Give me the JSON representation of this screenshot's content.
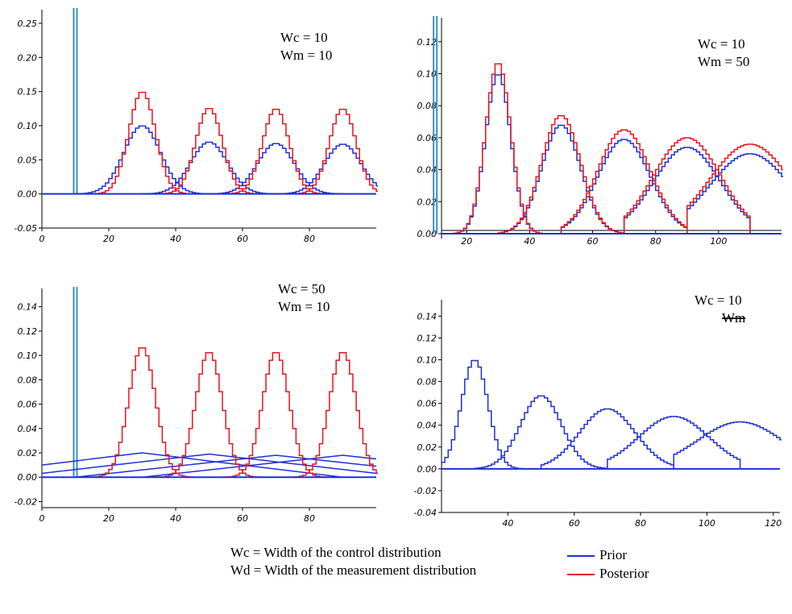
{
  "colors": {
    "prior": "#1f2fd6",
    "posterior": "#e8141c",
    "marker": "#3a8fc0",
    "axis": "#000000"
  },
  "chart_data": [
    {
      "type": "line",
      "panel": "top-left",
      "xlim": [
        0,
        100
      ],
      "ylim": [
        -0.05,
        0.27
      ],
      "xticks": [
        0,
        20,
        40,
        60,
        80
      ],
      "xtick_labels": [
        "0",
        "20",
        "40",
        "60",
        "80"
      ],
      "yticks": [
        -0.05,
        0,
        0.05,
        0.1,
        0.15,
        0.2,
        0.25
      ],
      "ytick_labels": [
        "-0.05",
        "0.00",
        "0.05",
        "0.10",
        "0.15",
        "0.20",
        "0.25"
      ],
      "annotation": [
        "Wc   = 10",
        "Wm  = 10"
      ],
      "marker_x": 10,
      "series": [
        {
          "role": "prior",
          "peaks": [
            {
              "x": 30,
              "y": 0.1
            },
            {
              "x": 50,
              "y": 0.076
            },
            {
              "x": 70,
              "y": 0.074
            },
            {
              "x": 90,
              "y": 0.073
            }
          ]
        },
        {
          "role": "posterior",
          "peaks": [
            {
              "x": 30,
              "y": 0.15
            },
            {
              "x": 50,
              "y": 0.126
            },
            {
              "x": 70,
              "y": 0.125
            },
            {
              "x": 90,
              "y": 0.125
            }
          ]
        }
      ]
    },
    {
      "type": "line",
      "panel": "top-right",
      "xlim": [
        12,
        120
      ],
      "ylim": [
        -0.003,
        0.135
      ],
      "xticks": [
        20,
        40,
        60,
        80,
        100
      ],
      "xtick_labels": [
        "20",
        "40",
        "60",
        "80",
        "100"
      ],
      "yticks": [
        0,
        0.02,
        0.04,
        0.06,
        0.08,
        0.1,
        0.12
      ],
      "ytick_labels": [
        "0.00",
        "0.02",
        "0.04",
        "0.06",
        "0.08",
        "0.10",
        "0.12"
      ],
      "annotation": [
        "Wc   = 10",
        "Wm  = 50"
      ],
      "marker_x": 10,
      "series": [
        {
          "role": "prior",
          "peaks": [
            {
              "x": 30,
              "y": 0.1
            },
            {
              "x": 50,
              "y": 0.068
            },
            {
              "x": 70,
              "y": 0.059
            },
            {
              "x": 90,
              "y": 0.054
            },
            {
              "x": 110,
              "y": 0.05
            }
          ]
        },
        {
          "role": "posterior",
          "peaks": [
            {
              "x": 30,
              "y": 0.107
            },
            {
              "x": 50,
              "y": 0.074
            },
            {
              "x": 70,
              "y": 0.065
            },
            {
              "x": 90,
              "y": 0.06
            },
            {
              "x": 110,
              "y": 0.056
            }
          ]
        }
      ]
    },
    {
      "type": "line",
      "panel": "bottom-left",
      "xlim": [
        0,
        100
      ],
      "ylim": [
        -0.025,
        0.155
      ],
      "xticks": [
        0,
        20,
        40,
        60,
        80
      ],
      "xtick_labels": [
        "0",
        "20",
        "40",
        "60",
        "80"
      ],
      "yticks": [
        -0.02,
        0,
        0.02,
        0.04,
        0.06,
        0.08,
        0.1,
        0.12,
        0.14
      ],
      "ytick_labels": [
        "-0.02",
        "0.00",
        "0.02",
        "0.04",
        "0.06",
        "0.08",
        "0.10",
        "0.12",
        "0.14"
      ],
      "annotation": [
        "Wc   = 50",
        "Wm  = 10"
      ],
      "marker_x": 10,
      "series": [
        {
          "role": "prior",
          "peaks": [
            {
              "x": 30,
              "y": 0.02
            },
            {
              "x": 50,
              "y": 0.019
            },
            {
              "x": 70,
              "y": 0.018
            },
            {
              "x": 90,
              "y": 0.018
            }
          ]
        },
        {
          "role": "posterior",
          "peaks": [
            {
              "x": 30,
              "y": 0.107
            },
            {
              "x": 50,
              "y": 0.103
            },
            {
              "x": 70,
              "y": 0.103
            },
            {
              "x": 90,
              "y": 0.103
            }
          ]
        }
      ]
    },
    {
      "type": "line",
      "panel": "bottom-right",
      "xlim": [
        20,
        122
      ],
      "ylim": [
        -0.04,
        0.155
      ],
      "xticks": [
        40,
        60,
        80,
        100,
        120
      ],
      "xtick_labels": [
        "40",
        "60",
        "80",
        "100",
        "120"
      ],
      "yticks": [
        -0.04,
        -0.02,
        0,
        0.02,
        0.04,
        0.06,
        0.08,
        0.1,
        0.12,
        0.14
      ],
      "ytick_labels": [
        "-0.04",
        "-0.02",
        "0.00",
        "0.02",
        "0.04",
        "0.06",
        "0.08",
        "0.10",
        "0.12",
        "0.14"
      ],
      "annotation": [
        "Wc   = 10",
        "Wm"
      ],
      "annotation_strikethrough_line": 1,
      "series": [
        {
          "role": "prior",
          "peaks": [
            {
              "x": 30,
              "y": 0.1
            },
            {
              "x": 50,
              "y": 0.067
            },
            {
              "x": 70,
              "y": 0.055
            },
            {
              "x": 90,
              "y": 0.048
            },
            {
              "x": 110,
              "y": 0.043
            }
          ]
        }
      ]
    }
  ],
  "captions": [
    "Wc = Width of the control distribution",
    "Wd = Width of the measurement distribution"
  ],
  "legend": [
    {
      "label": "Prior",
      "role": "prior"
    },
    {
      "label": "Posterior",
      "role": "posterior"
    }
  ]
}
